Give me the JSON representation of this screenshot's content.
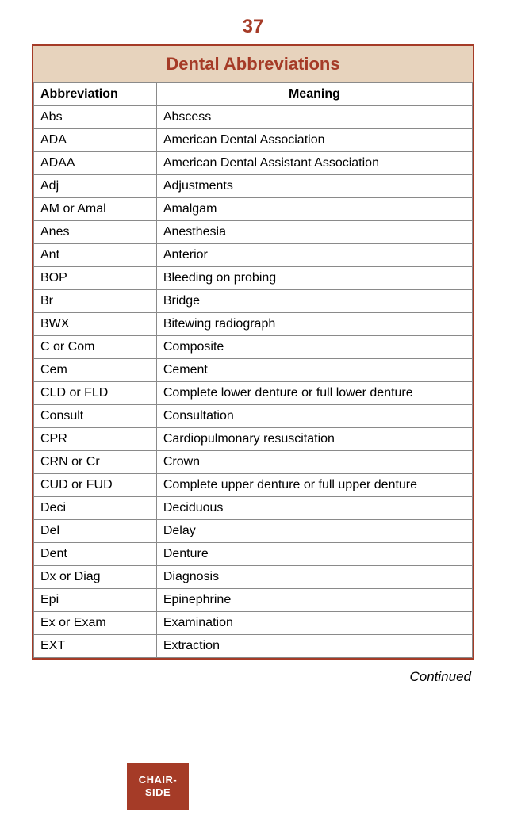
{
  "page_number": "37",
  "table": {
    "title": "Dental Abbreviations",
    "title_color": "#a53b27",
    "title_bg": "#e7d3bd",
    "border_color": "#a53b27",
    "cell_border_color": "#8a8a8a",
    "header_abbrev": "Abbreviation",
    "header_meaning": "Meaning",
    "rows": [
      {
        "abbrev": "Abs",
        "meaning": "Abscess"
      },
      {
        "abbrev": "ADA",
        "meaning": "American Dental Association"
      },
      {
        "abbrev": "ADAA",
        "meaning": "American Dental Assistant Association"
      },
      {
        "abbrev": "Adj",
        "meaning": "Adjustments"
      },
      {
        "abbrev": "AM or Amal",
        "meaning": "Amalgam"
      },
      {
        "abbrev": "Anes",
        "meaning": "Anesthesia"
      },
      {
        "abbrev": "Ant",
        "meaning": "Anterior"
      },
      {
        "abbrev": "BOP",
        "meaning": "Bleeding on probing"
      },
      {
        "abbrev": "Br",
        "meaning": "Bridge"
      },
      {
        "abbrev": "BWX",
        "meaning": "Bitewing radiograph"
      },
      {
        "abbrev": "C or Com",
        "meaning": "Composite"
      },
      {
        "abbrev": "Cem",
        "meaning": "Cement"
      },
      {
        "abbrev": "CLD or FLD",
        "meaning": "Complete lower denture or full lower denture"
      },
      {
        "abbrev": "Consult",
        "meaning": "Consultation"
      },
      {
        "abbrev": "CPR",
        "meaning": "Cardiopulmonary resuscitation"
      },
      {
        "abbrev": "CRN or Cr",
        "meaning": "Crown"
      },
      {
        "abbrev": "CUD or FUD",
        "meaning": "Complete upper denture or full upper denture"
      },
      {
        "abbrev": "Deci",
        "meaning": "Deciduous"
      },
      {
        "abbrev": "Del",
        "meaning": "Delay"
      },
      {
        "abbrev": "Dent",
        "meaning": "Denture"
      },
      {
        "abbrev": "Dx or Diag",
        "meaning": "Diagnosis"
      },
      {
        "abbrev": "Epi",
        "meaning": "Epinephrine"
      },
      {
        "abbrev": "Ex or Exam",
        "meaning": "Examination"
      },
      {
        "abbrev": "EXT",
        "meaning": "Extraction"
      }
    ]
  },
  "continued_label": "Continued",
  "page_number_color": "#a53b27",
  "tab": {
    "line1": "CHAIR-",
    "line2": "SIDE",
    "bg": "#a53b27"
  }
}
